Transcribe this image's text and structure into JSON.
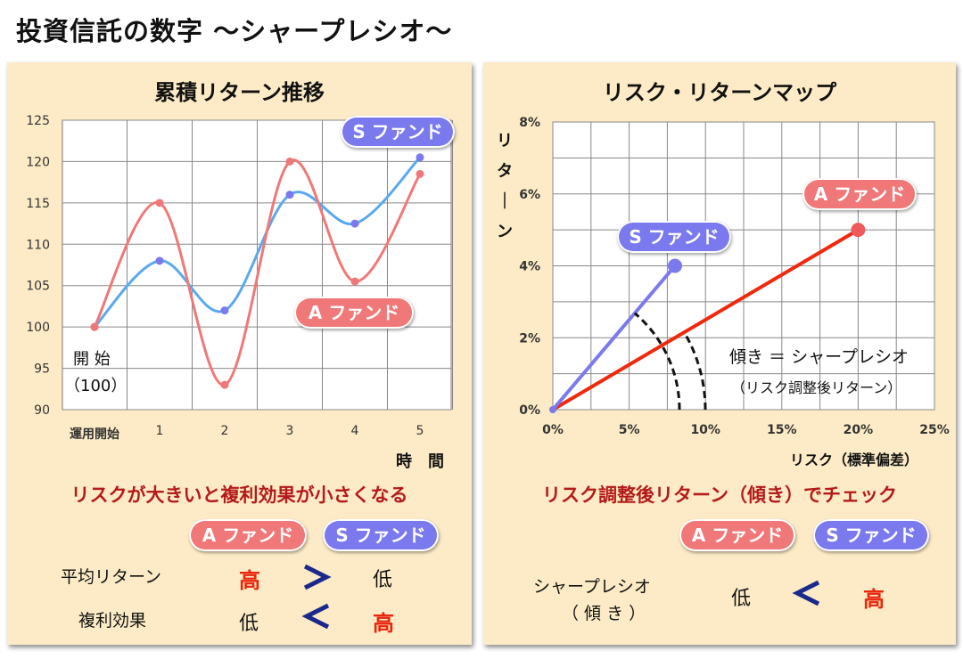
{
  "title": "投資信託の数字 〜シャープレシオ〜",
  "left": {
    "title": "累積リターン推移",
    "start_label_1": "開 始",
    "start_label_2": "（100）",
    "x_axis_label": "時　間",
    "a_badge": "A ファンド",
    "s_badge": "S ファンド",
    "message": "リスクが大きいと複利効果が小さくなる",
    "header_a": "A ファンド",
    "header_s": "S ファンド",
    "rows": [
      {
        "label": "平均リターン",
        "a": "高",
        "s": "低"
      },
      {
        "label": "複利効果",
        "a": "低",
        "s": "高"
      }
    ]
  },
  "right": {
    "title": "リスク・リターンマップ",
    "y_axis_label": "リターン",
    "x_axis_label": "リスク（標準偏差）",
    "a_badge": "A ファンド",
    "s_badge": "S ファンド",
    "slope_note_1": "傾き ＝ シャープレシオ",
    "slope_note_2": "（リスク調整後リターン）",
    "message": "リスク調整後リターン（傾き）でチェック",
    "header_a": "A ファンド",
    "header_s": "S ファンド",
    "row_label_1": "シャープレシオ",
    "row_label_2": "（ 傾 き ）",
    "row_a": "低",
    "row_s": "高"
  },
  "colors": {
    "a_fund": "#f07878",
    "a_line_right": "#f0280c",
    "s_fund": "#7b79ee",
    "s_line_left": "#5aa9ee",
    "panel_bg": "#fcebc6",
    "message": "#b41a1a",
    "arrow": "#1a2a8c"
  },
  "chart_data": [
    {
      "type": "line",
      "title": "累積リターン推移",
      "xlabel": "時　間",
      "ylabel": "",
      "categories": [
        "運用開始",
        "1",
        "2",
        "3",
        "4",
        "5"
      ],
      "ylim": [
        90,
        125
      ],
      "yticks": [
        90,
        95,
        100,
        105,
        110,
        115,
        120,
        125
      ],
      "series": [
        {
          "name": "A ファンド",
          "values": [
            100,
            115,
            93,
            120,
            105.5,
            118.5
          ]
        },
        {
          "name": "S ファンド",
          "values": [
            100,
            108,
            102,
            116,
            112.5,
            120.5
          ]
        }
      ],
      "grid": true
    },
    {
      "type": "line",
      "title": "リスク・リターンマップ",
      "xlabel": "リスク（標準偏差）",
      "ylabel": "リターン",
      "xlim": [
        0,
        25
      ],
      "ylim": [
        0,
        8
      ],
      "xticks": [
        "0%",
        "5%",
        "10%",
        "15%",
        "20%",
        "25%"
      ],
      "yticks": [
        "0%",
        "2%",
        "4%",
        "6%",
        "8%"
      ],
      "series": [
        {
          "name": "A ファンド",
          "x": [
            0,
            20
          ],
          "y": [
            0,
            5
          ]
        },
        {
          "name": "S ファンド",
          "x": [
            0,
            8
          ],
          "y": [
            0,
            4
          ]
        }
      ],
      "grid": true
    }
  ]
}
